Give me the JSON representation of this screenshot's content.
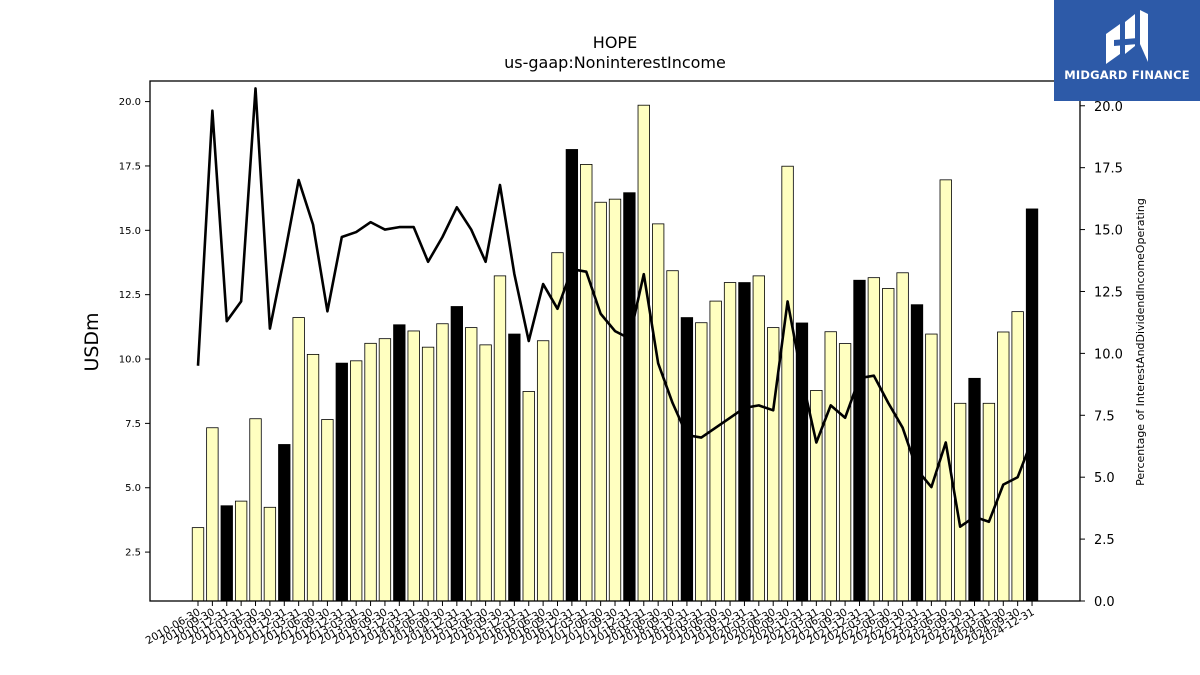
{
  "logo": {
    "text": "MIDGARD FINANCE",
    "icon": "midgard-logo-icon",
    "background": "#2d5aa8"
  },
  "chart_data": {
    "type": "bar",
    "title": "HOPE",
    "subtitle": "us-gaap:NoninterestIncome",
    "ylabel": "USDm",
    "y2label": "Percentage of InterestAndDividendIncomeOperating",
    "ylim": [
      0.6,
      20.8
    ],
    "y2lim": [
      0,
      21.0
    ],
    "yticks": [
      2.5,
      5.0,
      7.5,
      10.0,
      12.5,
      15.0,
      17.5,
      20.0
    ],
    "y2ticks": [
      0.0,
      2.5,
      5.0,
      7.5,
      10.0,
      12.5,
      15.0,
      17.5,
      20.0
    ],
    "colors": {
      "bar": "#ffffc0",
      "bar_highlight": "#000000",
      "line": "#000000",
      "edge": "#000000"
    },
    "categories": [
      "2010-06-30",
      "2010-09-30",
      "2010-12-31",
      "2011-03-31",
      "2011-06-30",
      "2011-09-30",
      "2011-12-31",
      "2012-03-31",
      "2012-06-30",
      "2012-09-30",
      "2012-12-31",
      "2013-03-31",
      "2013-06-30",
      "2013-09-30",
      "2013-12-31",
      "2014-03-31",
      "2014-06-30",
      "2014-09-30",
      "2014-12-31",
      "2015-03-31",
      "2015-06-30",
      "2015-09-30",
      "2015-12-31",
      "2016-03-31",
      "2016-06-30",
      "2016-09-30",
      "2016-12-31",
      "2017-03-31",
      "2017-06-30",
      "2017-09-30",
      "2017-12-31",
      "2018-03-31",
      "2018-06-30",
      "2018-09-30",
      "2018-12-31",
      "2019-03-31",
      "2019-06-30",
      "2019-09-30",
      "2019-12-31",
      "2020-03-31",
      "2020-06-30",
      "2020-09-30",
      "2020-12-31",
      "2021-03-31",
      "2021-06-30",
      "2021-09-30",
      "2021-12-31",
      "2022-03-31",
      "2022-06-30",
      "2022-09-30",
      "2022-12-31",
      "2023-03-31",
      "2023-06-30",
      "2023-09-30",
      "2023-12-31",
      "2024-03-31",
      "2024-06-30",
      "2024-09-30",
      "2024-12-31"
    ],
    "tick_labels": [
      "2010-06-30",
      "2010-09-30",
      "2010-12-31",
      "2011-03-31",
      "2011-06-30",
      "2011-09-30",
      "2011-12-31",
      "2012-03-31",
      "2012-06-30",
      "2012-09-30",
      "2012-12-31",
      "2013-03-31",
      "2013-06-30",
      "2013-09-30",
      "2013-12-31",
      "2014-03-31",
      "2014-06-30",
      "2014-09-30",
      "2014-12-31",
      "2015-03-31",
      "2015-06-30",
      "2015-09-30",
      "2015-12-31",
      "2016-03-31",
      "2016-06-30",
      "2016-09-30",
      "2016-12-31",
      "2017-03-31",
      "2017-06-30",
      "2017-09-30",
      "2017-12-31",
      "2018-03-31",
      "2018-06-30",
      "2018-09-30",
      "2018-12-31",
      "2019-03-31",
      "2019-06-30",
      "2019-09-30",
      "2019-12-31",
      "2020-03-31",
      "2020-06-30",
      "2020-09-30",
      "2020-12-31",
      "2021-03-31",
      "2021-06-30",
      "2021-09-30",
      "2021-12-31",
      "2022-03-31",
      "2022-06-30",
      "2022-09-30",
      "2022-12-31",
      "2023-03-31",
      "2023-06-30",
      "2023-09-30",
      "2023-12-31",
      "2024-03-31",
      "2024-06-30",
      "2024-09-30",
      "2024-12-31"
    ],
    "highlight": [
      false,
      false,
      true,
      false,
      false,
      false,
      true,
      false,
      false,
      false,
      true,
      false,
      false,
      false,
      true,
      false,
      false,
      false,
      true,
      false,
      false,
      false,
      true,
      false,
      false,
      false,
      true,
      false,
      false,
      false,
      true,
      false,
      false,
      false,
      true,
      false,
      false,
      false,
      true,
      false,
      false,
      false,
      true,
      false,
      false,
      false,
      true,
      false,
      false,
      false,
      true,
      false,
      false,
      false,
      true,
      false,
      false,
      false,
      true
    ],
    "series": [
      {
        "values": [
          3.45,
          7.33,
          4.3,
          4.48,
          7.68,
          4.24,
          6.68,
          11.61,
          10.18,
          7.65,
          9.84,
          9.93,
          10.61,
          10.79,
          11.33,
          11.09,
          10.46,
          11.37,
          12.04,
          11.22,
          10.55,
          13.23,
          10.97,
          8.74,
          10.71,
          14.13,
          18.14,
          17.56,
          16.09,
          16.21,
          16.46,
          19.86,
          15.25,
          13.43,
          11.61,
          11.41,
          12.25,
          12.97,
          12.97,
          13.23,
          11.22,
          17.49,
          11.4,
          8.78,
          11.06,
          10.6,
          13.06,
          13.16,
          12.74,
          13.35,
          12.11,
          10.97,
          16.96,
          8.28,
          9.25,
          8.28,
          11.05,
          11.84,
          15.83
        ]
      },
      {
        "axis": "y2",
        "values": [
          9.5,
          19.8,
          11.3,
          12.1,
          20.7,
          11.0,
          13.9,
          17.0,
          15.2,
          11.7,
          14.7,
          14.9,
          15.3,
          15.0,
          15.1,
          15.1,
          13.7,
          14.7,
          15.9,
          15.0,
          13.7,
          16.8,
          13.2,
          10.5,
          12.8,
          11.8,
          13.4,
          13.3,
          11.6,
          10.9,
          10.6,
          13.2,
          9.6,
          8.0,
          6.7,
          6.6,
          7.0,
          7.4,
          7.8,
          7.9,
          7.7,
          12.1,
          9.0,
          6.4,
          7.9,
          7.4,
          9.0,
          9.1,
          8.0,
          7.0,
          5.3,
          4.6,
          6.4,
          3.0,
          3.4,
          3.2,
          4.7,
          5.0,
          6.5
        ]
      }
    ]
  }
}
